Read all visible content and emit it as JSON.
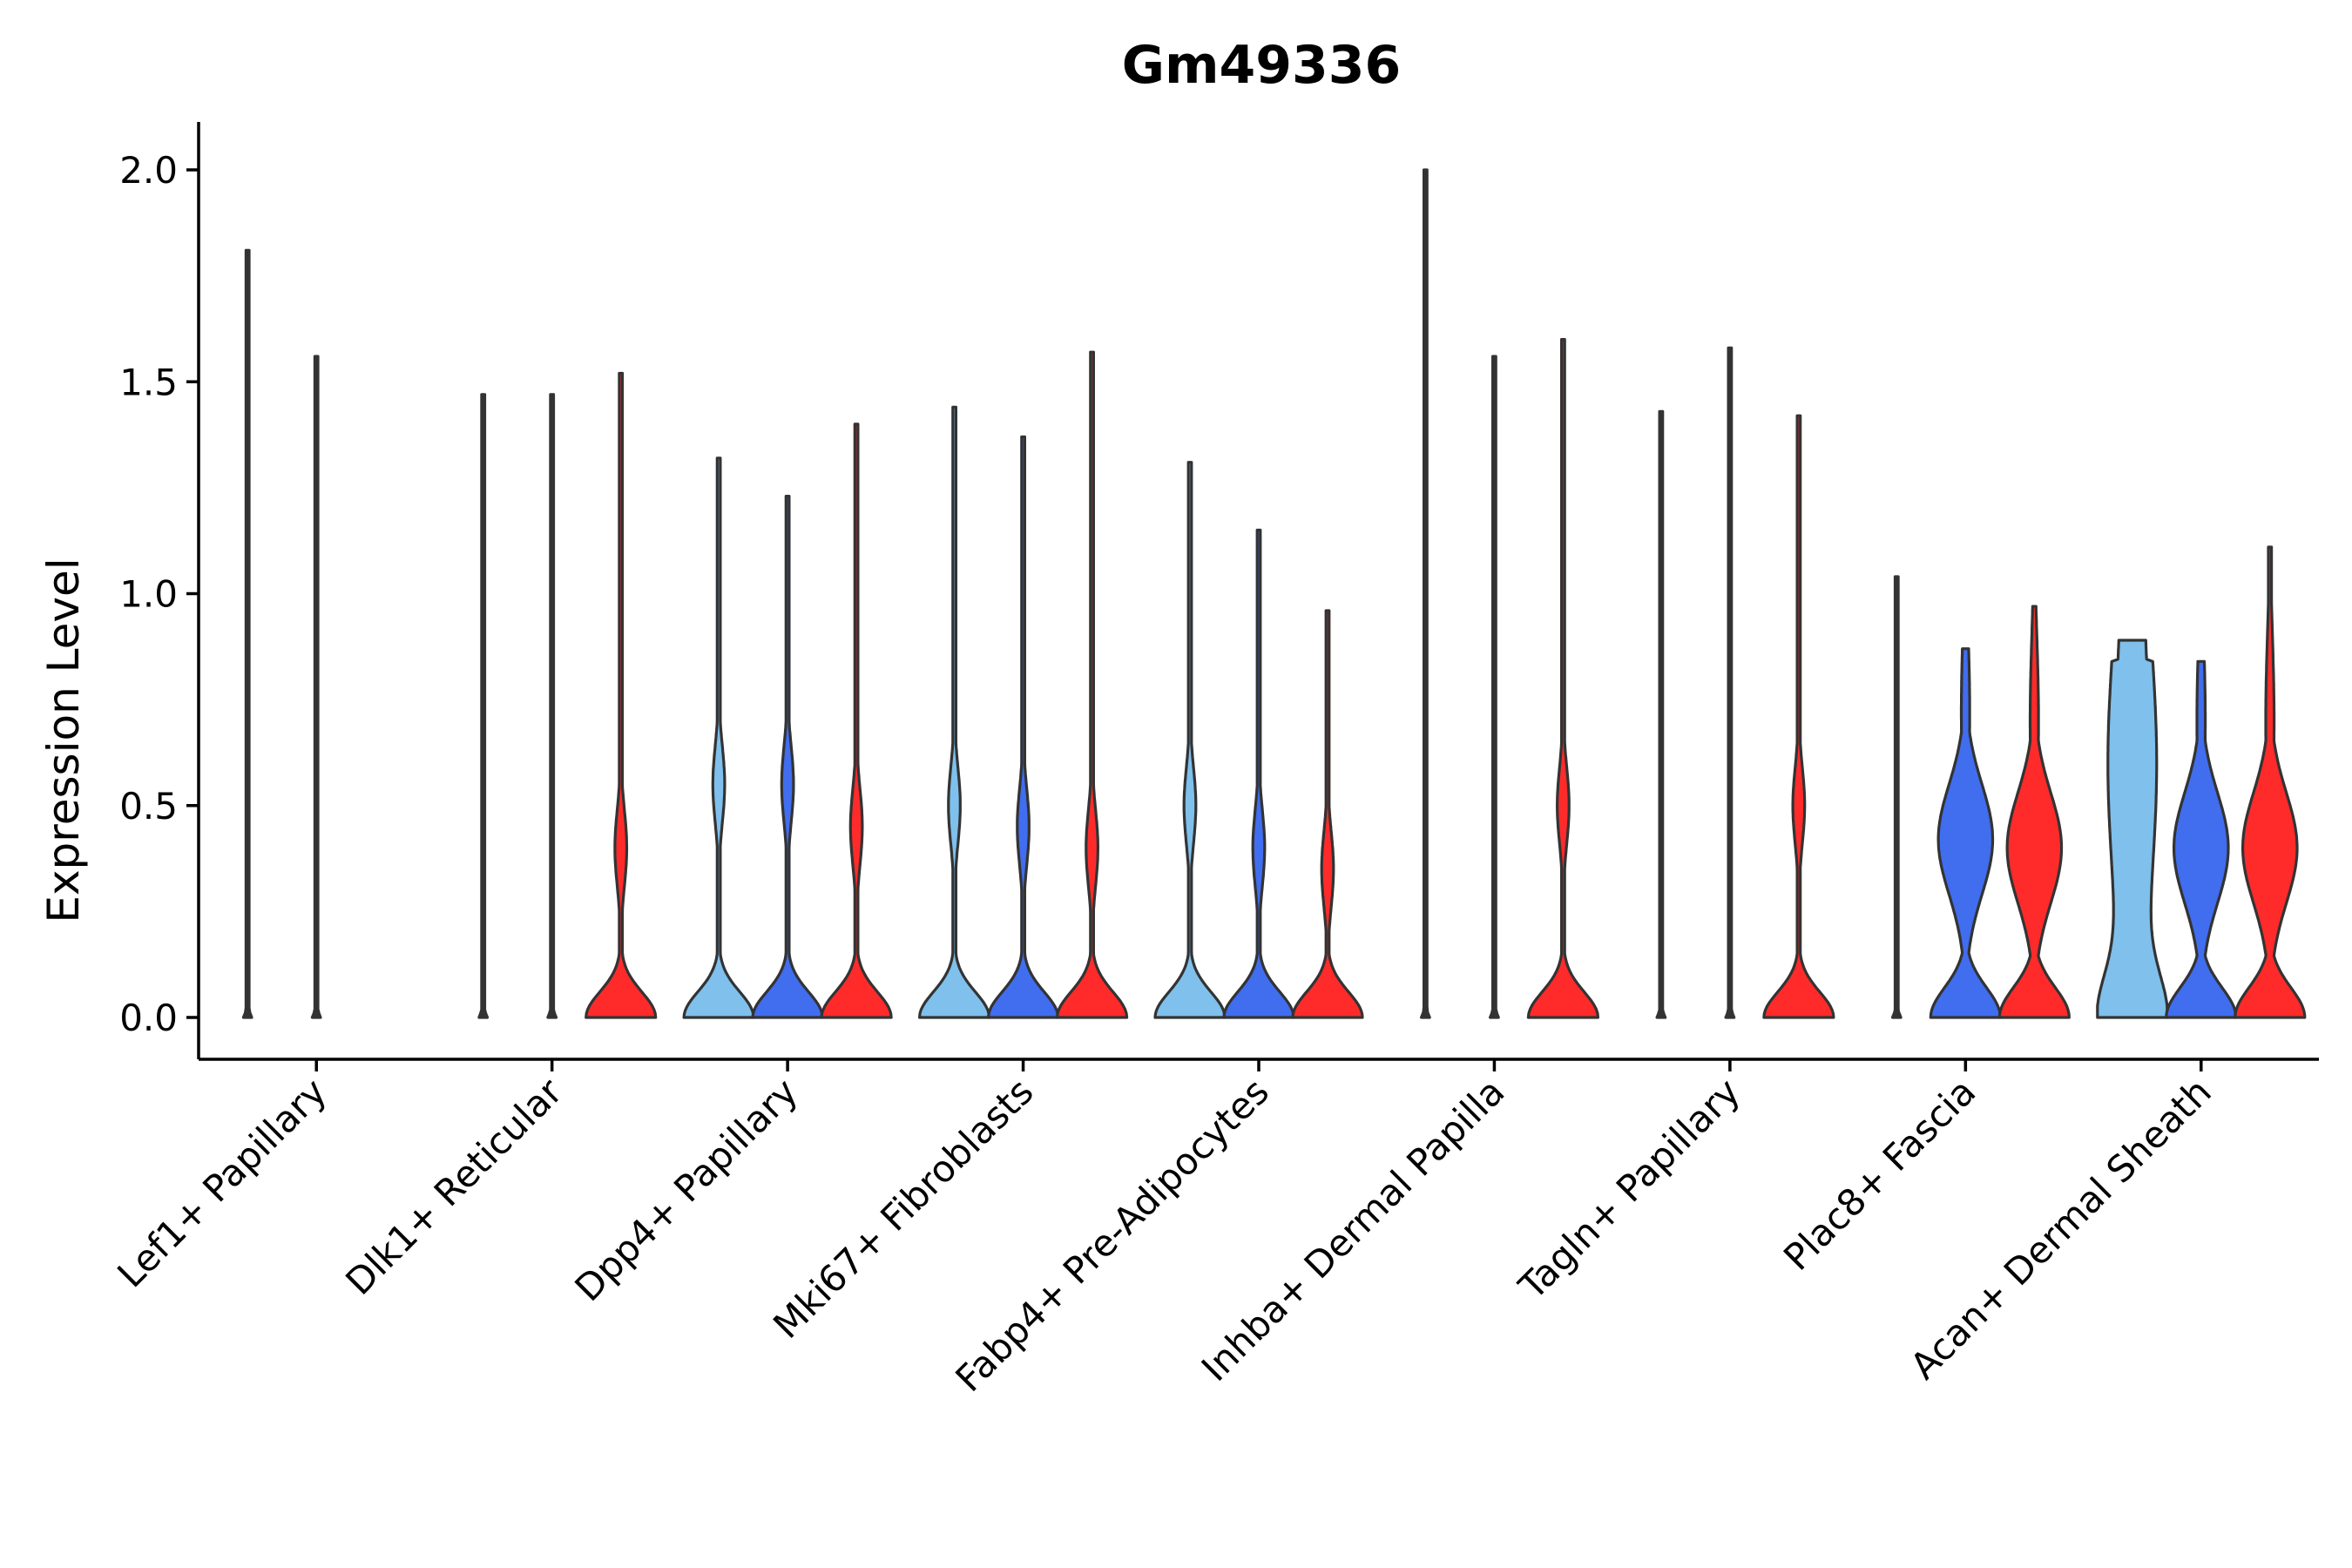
{
  "chart_data": {
    "type": "violin",
    "title": "Gm49336",
    "xlabel": "",
    "ylabel": "Expression Level",
    "ylim": [
      -0.1,
      2.1
    ],
    "yticks": [
      "0.0",
      "0.5",
      "1.0",
      "1.5",
      "2.0"
    ],
    "grid": false,
    "legend": "none",
    "series_colors": [
      "#7fc0ec",
      "#416def",
      "#ff2b2b"
    ],
    "categories": [
      "Lef1+ Papillary",
      "Dlk1+ Reticular",
      "Dpp4+ Papillary",
      "Mki67+ Fibroblasts",
      "Fabp4+ Pre-Adipocytes",
      "Inhba+ Dermal Papilla",
      "Tagln+ Papillary",
      "Plac8+ Fascia",
      "Acan+ Dermal Sheath"
    ],
    "violins": [
      [
        {
          "max": 1.81,
          "shape": "line"
        },
        {
          "max": 1.56,
          "shape": "line"
        },
        null
      ],
      [
        {
          "max": 1.47,
          "shape": "line"
        },
        {
          "max": 1.47,
          "shape": "line"
        },
        {
          "max": 1.52,
          "shape": "bimodal",
          "mode": 0.4
        }
      ],
      [
        {
          "max": 1.32,
          "shape": "bimodal",
          "mode": 0.55
        },
        {
          "max": 1.23,
          "shape": "bimodal",
          "mode": 0.55
        },
        {
          "max": 1.4,
          "shape": "bimodal",
          "mode": 0.45
        }
      ],
      [
        {
          "max": 1.44,
          "shape": "bimodal",
          "mode": 0.5
        },
        {
          "max": 1.37,
          "shape": "bimodal",
          "mode": 0.45
        },
        {
          "max": 1.57,
          "shape": "bimodal",
          "mode": 0.4
        }
      ],
      [
        {
          "max": 1.31,
          "shape": "bimodal",
          "mode": 0.5
        },
        {
          "max": 1.15,
          "shape": "bimodal",
          "mode": 0.4
        },
        {
          "max": 0.96,
          "shape": "bimodal",
          "mode": 0.35
        }
      ],
      [
        {
          "max": 2.0,
          "shape": "line"
        },
        {
          "max": 1.56,
          "shape": "line"
        },
        {
          "max": 1.6,
          "shape": "bimodal",
          "mode": 0.5
        }
      ],
      [
        {
          "max": 1.43,
          "shape": "line"
        },
        {
          "max": 1.58,
          "shape": "line"
        },
        {
          "max": 1.42,
          "shape": "bimodal",
          "mode": 0.5
        }
      ],
      [
        {
          "max": 1.04,
          "shape": "line"
        },
        {
          "max": 0.87,
          "shape": "wide",
          "mode": 0.42
        },
        {
          "max": 0.97,
          "shape": "wide",
          "mode": 0.4
        }
      ],
      [
        {
          "max": 0.89,
          "shape": "broad"
        },
        {
          "max": 0.84,
          "shape": "wide",
          "mode": 0.4
        },
        {
          "max": 1.11,
          "shape": "wide",
          "mode": 0.4
        }
      ]
    ]
  }
}
